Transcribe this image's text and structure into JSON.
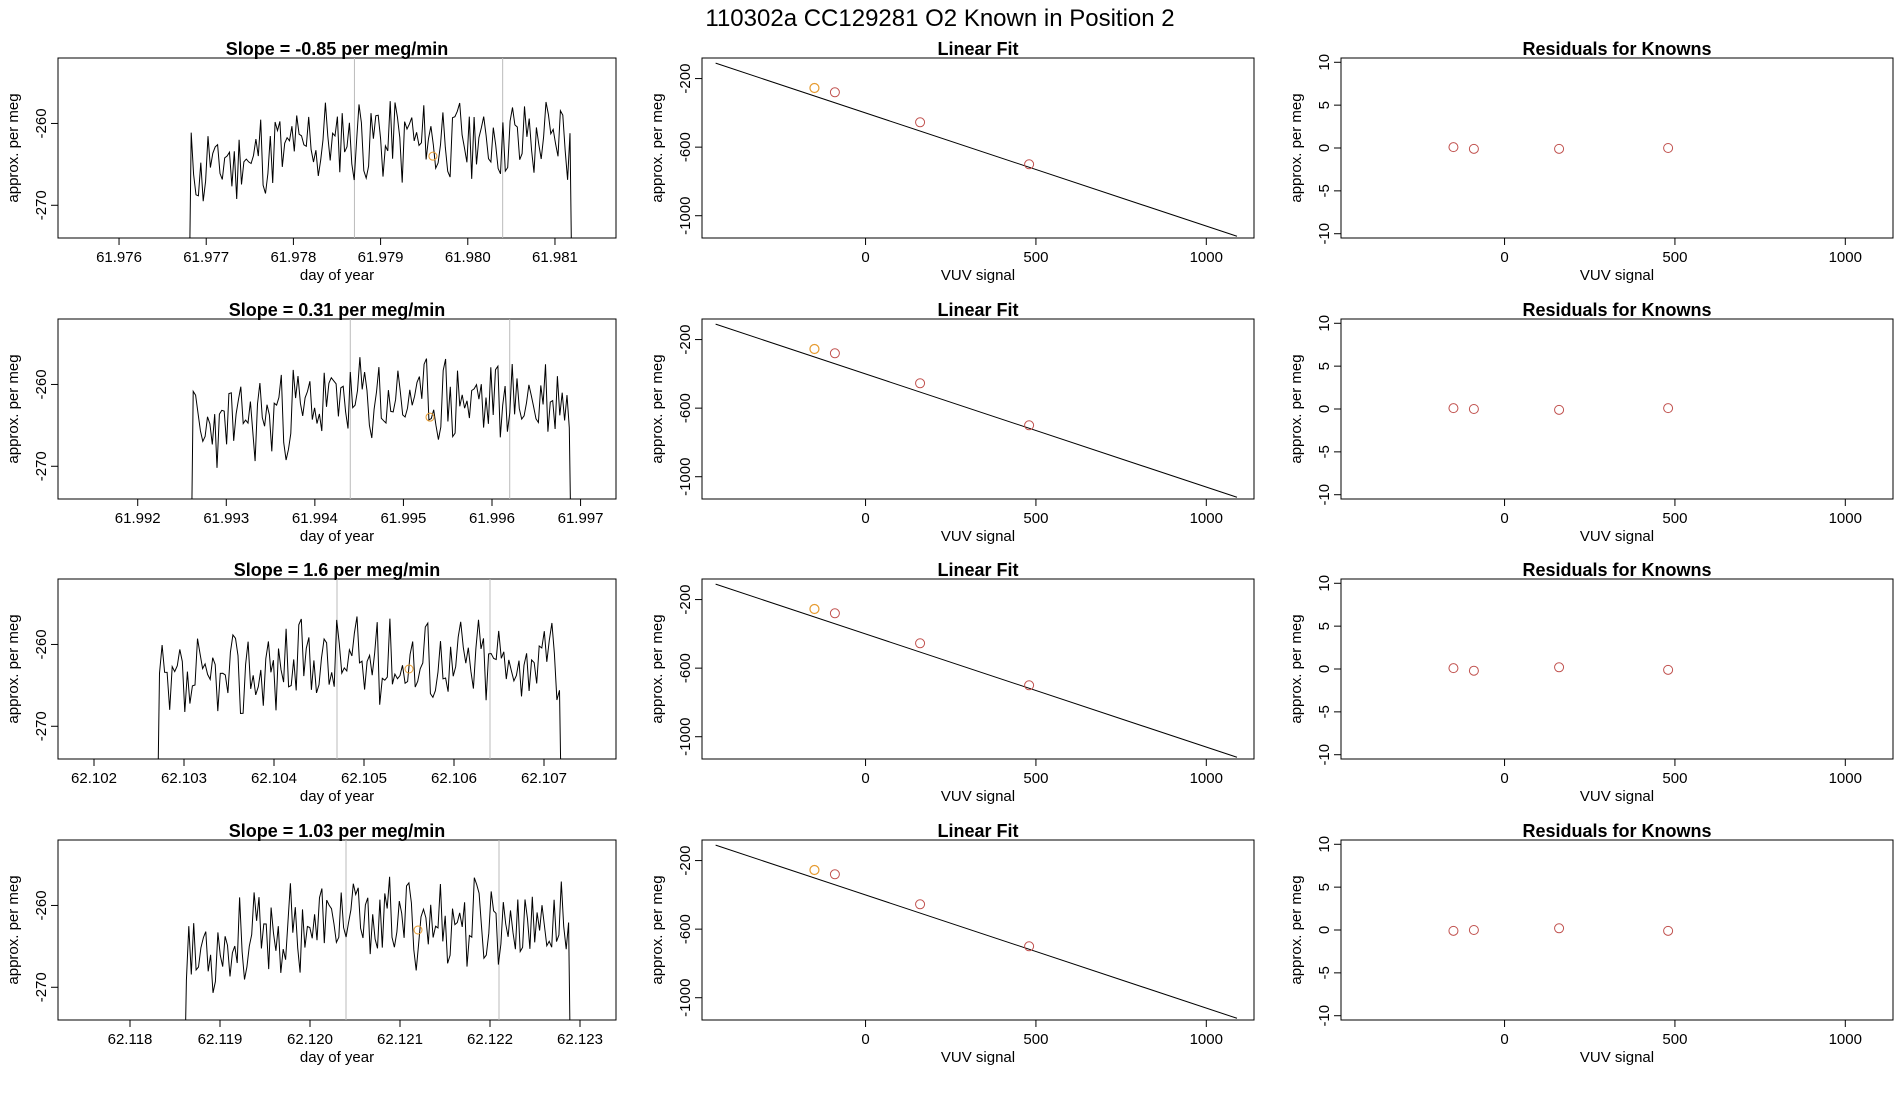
{
  "page": {
    "title": "110302a      CC129281    O2 Known in Position  2"
  },
  "chart_data": [
    {
      "type": "line",
      "title": "Slope =  -0.85  per meg/min",
      "xlabel": "day of year",
      "ylabel": "approx. per meg",
      "xlim": [
        61.9753,
        61.9817
      ],
      "ylim": [
        -274,
        -252
      ],
      "xticks": [
        "61.976",
        "61.977",
        "61.978",
        "61.979",
        "61.980",
        "61.981"
      ],
      "xtick_values": [
        61.976,
        61.977,
        61.978,
        61.979,
        61.98,
        61.981
      ],
      "yticks": [
        "-270",
        "-260"
      ],
      "ytick_values": [
        -270,
        -260
      ],
      "data_start": 61.9768,
      "data_end": 61.9812,
      "seed": 11,
      "vlines": [
        61.9787,
        61.9804
      ],
      "marker": {
        "x": 61.9796,
        "y": -264
      }
    },
    {
      "type": "line",
      "title": "Linear Fit",
      "xlabel": "VUV signal",
      "ylabel": "approx. per meg",
      "xlim": [
        -480,
        1140
      ],
      "ylim": [
        -1130,
        -80
      ],
      "xticks": [
        "0",
        "500",
        "1000"
      ],
      "xtick_values": [
        0,
        500,
        1000
      ],
      "yticks": [
        "-1000",
        "-600",
        "-200"
      ],
      "ytick_values": [
        -1000,
        -600,
        -200
      ],
      "line": {
        "x": [
          -440,
          1090
        ],
        "y": [
          -110,
          -1120
        ]
      },
      "points": {
        "x": [
          -90,
          160,
          480
        ],
        "y": [
          -280,
          -455,
          -700
        ]
      },
      "highlight": {
        "x": [
          -150
        ],
        "y": [
          -255
        ]
      }
    },
    {
      "type": "scatter",
      "title": "Residuals for Knowns",
      "xlabel": "VUV signal",
      "ylabel": "approx. per meg",
      "xlim": [
        -480,
        1140
      ],
      "ylim": [
        -10.5,
        10.5
      ],
      "xticks": [
        "0",
        "500",
        "1000"
      ],
      "xtick_values": [
        0,
        500,
        1000
      ],
      "yticks": [
        "-10",
        "-5",
        "0",
        "5",
        "10"
      ],
      "ytick_values": [
        -10,
        -5,
        0,
        5,
        10
      ],
      "points": {
        "x": [
          -150,
          -90,
          160,
          480
        ],
        "y": [
          0.1,
          -0.1,
          -0.1,
          0.0
        ]
      }
    },
    {
      "type": "line",
      "title": "Slope =  0.31  per meg/min",
      "xlabel": "day of year",
      "ylabel": "approx. per meg",
      "xlim": [
        61.9911,
        61.9974
      ],
      "ylim": [
        -274,
        -252
      ],
      "xticks": [
        "61.992",
        "61.993",
        "61.994",
        "61.995",
        "61.996",
        "61.997"
      ],
      "xtick_values": [
        61.992,
        61.993,
        61.994,
        61.995,
        61.996,
        61.997
      ],
      "yticks": [
        "-270",
        "-260"
      ],
      "ytick_values": [
        -270,
        -260
      ],
      "data_start": 61.9926,
      "data_end": 61.9969,
      "seed": 23,
      "vlines": [
        61.9944,
        61.9962
      ],
      "marker": {
        "x": 61.9953,
        "y": -264
      }
    },
    {
      "type": "line",
      "title": "Linear Fit",
      "xlabel": "VUV signal",
      "ylabel": "approx. per meg",
      "xlim": [
        -480,
        1140
      ],
      "ylim": [
        -1130,
        -80
      ],
      "xticks": [
        "0",
        "500",
        "1000"
      ],
      "xtick_values": [
        0,
        500,
        1000
      ],
      "yticks": [
        "-1000",
        "-600",
        "-200"
      ],
      "ytick_values": [
        -1000,
        -600,
        -200
      ],
      "line": {
        "x": [
          -440,
          1090
        ],
        "y": [
          -110,
          -1120
        ]
      },
      "points": {
        "x": [
          -90,
          160,
          480
        ],
        "y": [
          -280,
          -455,
          -700
        ]
      },
      "highlight": {
        "x": [
          -150
        ],
        "y": [
          -255
        ]
      }
    },
    {
      "type": "scatter",
      "title": "Residuals for Knowns",
      "xlabel": "VUV signal",
      "ylabel": "approx. per meg",
      "xlim": [
        -480,
        1140
      ],
      "ylim": [
        -10.5,
        10.5
      ],
      "xticks": [
        "0",
        "500",
        "1000"
      ],
      "xtick_values": [
        0,
        500,
        1000
      ],
      "yticks": [
        "-10",
        "-5",
        "0",
        "5",
        "10"
      ],
      "ytick_values": [
        -10,
        -5,
        0,
        5,
        10
      ],
      "points": {
        "x": [
          -150,
          -90,
          160,
          480
        ],
        "y": [
          0.1,
          0.0,
          -0.1,
          0.1
        ]
      }
    },
    {
      "type": "line",
      "title": "Slope =  1.6  per meg/min",
      "xlabel": "day of year",
      "ylabel": "approx. per meg",
      "xlim": [
        62.1016,
        62.1078
      ],
      "ylim": [
        -274,
        -252
      ],
      "xticks": [
        "62.102",
        "62.103",
        "62.104",
        "62.105",
        "62.106",
        "62.107"
      ],
      "xtick_values": [
        62.102,
        62.103,
        62.104,
        62.105,
        62.106,
        62.107
      ],
      "yticks": [
        "-270",
        "-260"
      ],
      "ytick_values": [
        -270,
        -260
      ],
      "data_start": 62.1027,
      "data_end": 62.1072,
      "seed": 37,
      "vlines": [
        62.1047,
        62.1064
      ],
      "marker": {
        "x": 62.1055,
        "y": -263
      }
    },
    {
      "type": "line",
      "title": "Linear Fit",
      "xlabel": "VUV signal",
      "ylabel": "approx. per meg",
      "xlim": [
        -480,
        1140
      ],
      "ylim": [
        -1130,
        -80
      ],
      "xticks": [
        "0",
        "500",
        "1000"
      ],
      "xtick_values": [
        0,
        500,
        1000
      ],
      "yticks": [
        "-1000",
        "-600",
        "-200"
      ],
      "ytick_values": [
        -1000,
        -600,
        -200
      ],
      "line": {
        "x": [
          -440,
          1090
        ],
        "y": [
          -110,
          -1120
        ]
      },
      "points": {
        "x": [
          -90,
          160,
          480
        ],
        "y": [
          -280,
          -455,
          -700
        ]
      },
      "highlight": {
        "x": [
          -150
        ],
        "y": [
          -255
        ]
      }
    },
    {
      "type": "scatter",
      "title": "Residuals for Knowns",
      "xlabel": "VUV signal",
      "ylabel": "approx. per meg",
      "xlim": [
        -480,
        1140
      ],
      "ylim": [
        -10.5,
        10.5
      ],
      "xticks": [
        "0",
        "500",
        "1000"
      ],
      "xtick_values": [
        0,
        500,
        1000
      ],
      "yticks": [
        "-10",
        "-5",
        "0",
        "5",
        "10"
      ],
      "ytick_values": [
        -10,
        -5,
        0,
        5,
        10
      ],
      "points": {
        "x": [
          -150,
          -90,
          160,
          480
        ],
        "y": [
          0.1,
          -0.2,
          0.2,
          -0.1
        ]
      }
    },
    {
      "type": "line",
      "title": "Slope =  1.03  per meg/min",
      "xlabel": "day of year",
      "ylabel": "approx. per meg",
      "xlim": [
        62.1172,
        62.1234
      ],
      "ylim": [
        -274,
        -252
      ],
      "xticks": [
        "62.118",
        "62.119",
        "62.120",
        "62.121",
        "62.122",
        "62.123"
      ],
      "xtick_values": [
        62.118,
        62.119,
        62.12,
        62.121,
        62.122,
        62.123
      ],
      "yticks": [
        "-270",
        "-260"
      ],
      "ytick_values": [
        -270,
        -260
      ],
      "data_start": 62.1186,
      "data_end": 62.1229,
      "seed": 53,
      "vlines": [
        62.1204,
        62.1221
      ],
      "marker": {
        "x": 62.1212,
        "y": -263
      }
    },
    {
      "type": "line",
      "title": "Linear Fit",
      "xlabel": "VUV signal",
      "ylabel": "approx. per meg",
      "xlim": [
        -480,
        1140
      ],
      "ylim": [
        -1130,
        -80
      ],
      "xticks": [
        "0",
        "500",
        "1000"
      ],
      "xtick_values": [
        0,
        500,
        1000
      ],
      "yticks": [
        "-1000",
        "-600",
        "-200"
      ],
      "ytick_values": [
        -1000,
        -600,
        -200
      ],
      "line": {
        "x": [
          -440,
          1090
        ],
        "y": [
          -110,
          -1120
        ]
      },
      "points": {
        "x": [
          -90,
          160,
          480
        ],
        "y": [
          -280,
          -455,
          -700
        ]
      },
      "highlight": {
        "x": [
          -150
        ],
        "y": [
          -255
        ]
      }
    },
    {
      "type": "scatter",
      "title": "Residuals for Knowns",
      "xlabel": "VUV signal",
      "ylabel": "approx. per meg",
      "xlim": [
        -480,
        1140
      ],
      "ylim": [
        -10.5,
        10.5
      ],
      "xticks": [
        "0",
        "500",
        "1000"
      ],
      "xtick_values": [
        0,
        500,
        1000
      ],
      "yticks": [
        "-10",
        "-5",
        "0",
        "5",
        "10"
      ],
      "ytick_values": [
        -10,
        -5,
        0,
        5,
        10
      ],
      "points": {
        "x": [
          -150,
          -90,
          160,
          480
        ],
        "y": [
          -0.1,
          0.0,
          0.2,
          -0.1
        ]
      }
    }
  ]
}
